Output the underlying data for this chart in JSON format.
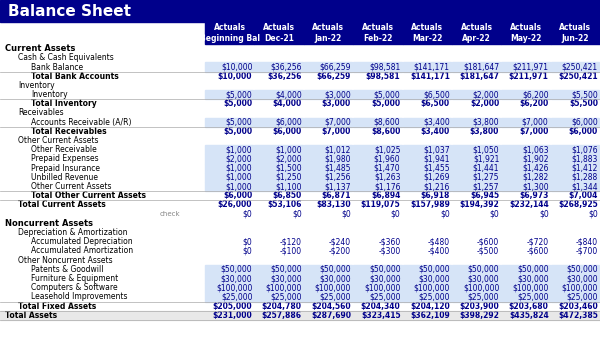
{
  "title": "Balance Sheet",
  "title_bg": "#00008B",
  "title_color": "#FFFFFF",
  "header_bg": "#00008B",
  "header_color": "#FFFFFF",
  "col_headers_row1": [
    "Actuals",
    "Actuals",
    "Actuals",
    "Actuals",
    "Actuals",
    "Actuals",
    "Actuals",
    "Actuals"
  ],
  "col_headers_row2": [
    "Beginning Bal",
    "Dec-21",
    "Jan-22",
    "Feb-22",
    "Mar-22",
    "Apr-22",
    "May-22",
    "Jun-22"
  ],
  "rows": [
    {
      "label": "Current Assets",
      "indent": 0,
      "bold": true,
      "type": "section_header",
      "values": null
    },
    {
      "label": "Cash & Cash Equivalents",
      "indent": 1,
      "bold": false,
      "type": "subsection",
      "values": null
    },
    {
      "label": "Bank Balance",
      "indent": 2,
      "bold": false,
      "type": "data_blue",
      "values": [
        "$10,000",
        "$36,256",
        "$66,259",
        "$98,581",
        "$141,171",
        "$181,647",
        "$211,971",
        "$250,421"
      ]
    },
    {
      "label": "Total Bank Accounts",
      "indent": 2,
      "bold": true,
      "type": "total",
      "values": [
        "$10,000",
        "$36,256",
        "$66,259",
        "$98,581",
        "$141,171",
        "$181,647",
        "$211,971",
        "$250,421"
      ]
    },
    {
      "label": "Inventory",
      "indent": 1,
      "bold": false,
      "type": "subsection",
      "values": null
    },
    {
      "label": "Inventory",
      "indent": 2,
      "bold": false,
      "type": "data_blue",
      "values": [
        "$5,000",
        "$4,000",
        "$3,000",
        "$5,000",
        "$6,500",
        "$2,000",
        "$6,200",
        "$5,500"
      ]
    },
    {
      "label": "Total Inventory",
      "indent": 2,
      "bold": true,
      "type": "total",
      "values": [
        "$5,000",
        "$4,000",
        "$3,000",
        "$5,000",
        "$6,500",
        "$2,000",
        "$6,200",
        "$5,500"
      ]
    },
    {
      "label": "Receivables",
      "indent": 1,
      "bold": false,
      "type": "subsection",
      "values": null
    },
    {
      "label": "Accounts Receivable (A/R)",
      "indent": 2,
      "bold": false,
      "type": "data_blue",
      "values": [
        "$5,000",
        "$6,000",
        "$7,000",
        "$8,600",
        "$3,400",
        "$3,800",
        "$7,000",
        "$6,000"
      ]
    },
    {
      "label": "Total Receivables",
      "indent": 2,
      "bold": true,
      "type": "total",
      "values": [
        "$5,000",
        "$6,000",
        "$7,000",
        "$8,600",
        "$3,400",
        "$3,800",
        "$7,000",
        "$6,000"
      ]
    },
    {
      "label": "Other Current Assets",
      "indent": 1,
      "bold": false,
      "type": "subsection",
      "values": null
    },
    {
      "label": "Other Receivable",
      "indent": 2,
      "bold": false,
      "type": "data_blue",
      "values": [
        "$1,000",
        "$1,000",
        "$1,012",
        "$1,025",
        "$1,037",
        "$1,050",
        "$1,063",
        "$1,076"
      ]
    },
    {
      "label": "Prepaid Expenses",
      "indent": 2,
      "bold": false,
      "type": "data_blue",
      "values": [
        "$2,000",
        "$2,000",
        "$1,980",
        "$1,960",
        "$1,941",
        "$1,921",
        "$1,902",
        "$1,883"
      ]
    },
    {
      "label": "Prepaid Insurance",
      "indent": 2,
      "bold": false,
      "type": "data_blue",
      "values": [
        "$1,000",
        "$1,500",
        "$1,485",
        "$1,470",
        "$1,455",
        "$1,441",
        "$1,426",
        "$1,412"
      ]
    },
    {
      "label": "Unbilled Revenue",
      "indent": 2,
      "bold": false,
      "type": "data_blue",
      "values": [
        "$1,000",
        "$1,250",
        "$1,256",
        "$1,263",
        "$1,269",
        "$1,275",
        "$1,282",
        "$1,288"
      ]
    },
    {
      "label": "Other Current Assets",
      "indent": 2,
      "bold": false,
      "type": "data_blue",
      "values": [
        "$1,000",
        "$1,100",
        "$1,137",
        "$1,176",
        "$1,216",
        "$1,257",
        "$1,300",
        "$1,344"
      ]
    },
    {
      "label": "Total Other Current Assets",
      "indent": 2,
      "bold": true,
      "type": "total",
      "values": [
        "$6,000",
        "$6,850",
        "$6,871",
        "$6,894",
        "$6,918",
        "$6,945",
        "$6,973",
        "$7,004"
      ]
    },
    {
      "label": "Total Current Assets",
      "indent": 1,
      "bold": true,
      "type": "grand_total",
      "values": [
        "$26,000",
        "$53,106",
        "$83,130",
        "$119,075",
        "$157,989",
        "$194,392",
        "$232,144",
        "$268,925"
      ]
    },
    {
      "label": "check",
      "indent": 2,
      "bold": false,
      "type": "check",
      "values": [
        "$0",
        "$0",
        "$0",
        "$0",
        "$0",
        "$0",
        "$0",
        "$0"
      ]
    },
    {
      "label": "Noncurrent Assets",
      "indent": 0,
      "bold": true,
      "type": "section_header",
      "values": null
    },
    {
      "label": "Depreciation & Amortization",
      "indent": 1,
      "bold": false,
      "type": "subsection",
      "values": null
    },
    {
      "label": "Accumulated Depreciation",
      "indent": 2,
      "bold": false,
      "type": "data_plain",
      "values": [
        "$0",
        "-$120",
        "-$240",
        "-$360",
        "-$480",
        "-$600",
        "-$720",
        "-$840"
      ]
    },
    {
      "label": "Accumulated Amortization",
      "indent": 2,
      "bold": false,
      "type": "data_plain",
      "values": [
        "$0",
        "-$100",
        "-$200",
        "-$300",
        "-$400",
        "-$500",
        "-$600",
        "-$700"
      ]
    },
    {
      "label": "Other Noncurrent Assets",
      "indent": 1,
      "bold": false,
      "type": "subsection",
      "values": null
    },
    {
      "label": "Patents & Goodwill",
      "indent": 2,
      "bold": false,
      "type": "data_blue",
      "values": [
        "$50,000",
        "$50,000",
        "$50,000",
        "$50,000",
        "$50,000",
        "$50,000",
        "$50,000",
        "$50,000"
      ]
    },
    {
      "label": "Furniture & Equipment",
      "indent": 2,
      "bold": false,
      "type": "data_blue",
      "values": [
        "$30,000",
        "$30,000",
        "$30,000",
        "$30,000",
        "$30,000",
        "$30,000",
        "$30,000",
        "$30,000"
      ]
    },
    {
      "label": "Computers & Software",
      "indent": 2,
      "bold": false,
      "type": "data_blue",
      "values": [
        "$100,000",
        "$100,000",
        "$100,000",
        "$100,000",
        "$100,000",
        "$100,000",
        "$100,000",
        "$100,000"
      ]
    },
    {
      "label": "Leasehold Improvements",
      "indent": 2,
      "bold": false,
      "type": "data_blue",
      "values": [
        "$25,000",
        "$25,000",
        "$25,000",
        "$25,000",
        "$25,000",
        "$25,000",
        "$25,000",
        "$25,000"
      ]
    },
    {
      "label": "Total Fixed Assets",
      "indent": 1,
      "bold": true,
      "type": "total",
      "values": [
        "$205,000",
        "$204,780",
        "$204,560",
        "$204,340",
        "$204,120",
        "$203,900",
        "$203,680",
        "$203,460"
      ]
    },
    {
      "label": "Total Assets",
      "indent": 0,
      "bold": true,
      "type": "grand_total2",
      "values": [
        "$231,000",
        "$257,886",
        "$287,690",
        "$323,415",
        "$362,109",
        "$398,292",
        "$435,824",
        "$472,385"
      ]
    }
  ]
}
